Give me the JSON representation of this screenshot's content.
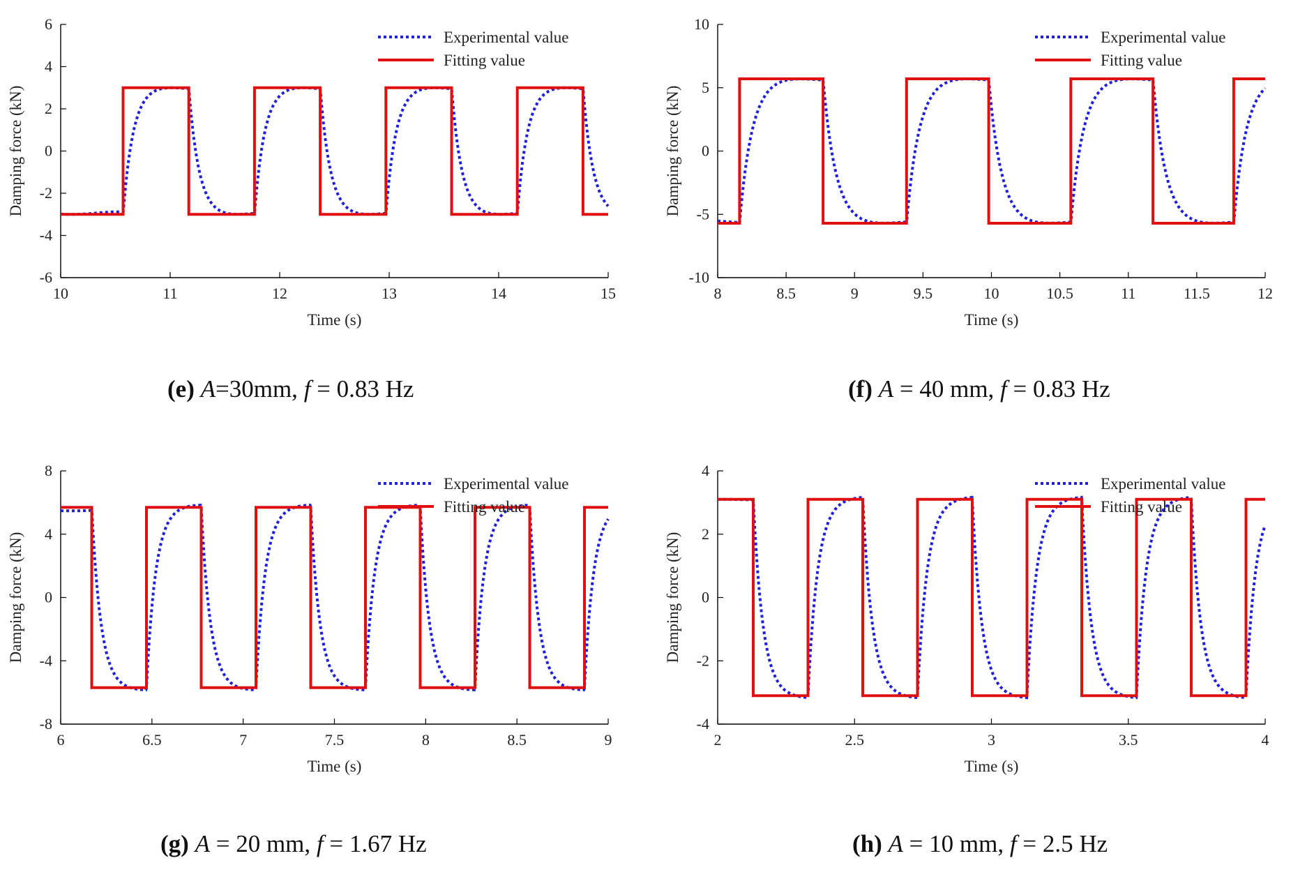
{
  "chart_data": [
    {
      "id": "e",
      "type": "line",
      "xlabel": "Time (s)",
      "ylabel": "Damping force (kN)",
      "xlim": [
        10,
        15
      ],
      "ylim": [
        -6,
        6
      ],
      "xticks": [
        10,
        11,
        12,
        13,
        14,
        15
      ],
      "yticks": [
        -6,
        -4,
        -2,
        0,
        2,
        4,
        6
      ],
      "legend_position": "top-right",
      "amplitude": 3.0,
      "switch_times": [
        10.57,
        11.17,
        11.77,
        12.37,
        12.97,
        13.57,
        14.17,
        14.77
      ],
      "initial_sign": -1,
      "lag": 0.09,
      "series": [
        {
          "name": "Experimental value",
          "style": "dotted",
          "color": "#1f1fe0"
        },
        {
          "name": "Fitting value",
          "style": "solid",
          "color": "#e01010"
        }
      ],
      "caption": {
        "letter": "(e)",
        "rest": [
          {
            "t": "A",
            "i": true
          },
          {
            "t": "=30mm, ",
            "i": false
          },
          {
            "t": "f",
            "i": true
          },
          {
            "t": " = 0.83 Hz",
            "i": false
          }
        ]
      }
    },
    {
      "id": "f",
      "type": "line",
      "xlabel": "Time (s)",
      "ylabel": "Damping force (kN)",
      "xlim": [
        8,
        12
      ],
      "ylim": [
        -10,
        10
      ],
      "xticks": [
        8,
        8.5,
        9,
        9.5,
        10,
        10.5,
        11,
        11.5,
        12
      ],
      "yticks": [
        -10,
        -5,
        0,
        5,
        10
      ],
      "legend_position": "top-right",
      "amplitude": 5.7,
      "switch_times": [
        8.16,
        8.77,
        9.38,
        9.98,
        10.58,
        11.18,
        11.77
      ],
      "initial_sign": -1,
      "lag": 0.09,
      "series": [
        {
          "name": "Experimental value",
          "style": "dotted",
          "color": "#1f1fe0"
        },
        {
          "name": "Fitting value",
          "style": "solid",
          "color": "#e01010"
        }
      ],
      "caption": {
        "letter": "(f)",
        "rest": [
          {
            "t": "A",
            "i": true
          },
          {
            "t": " = 40 mm, ",
            "i": false
          },
          {
            "t": "f",
            "i": true
          },
          {
            "t": " = 0.83 Hz",
            "i": false
          }
        ]
      }
    },
    {
      "id": "g",
      "type": "line",
      "xlabel": "Time (s)",
      "ylabel": "Damping force (kN)",
      "xlim": [
        6,
        9
      ],
      "ylim": [
        -8,
        8
      ],
      "xticks": [
        6,
        6.5,
        7,
        7.5,
        8,
        8.5,
        9
      ],
      "yticks": [
        -8,
        -4,
        0,
        4,
        8
      ],
      "legend_position": "top-right",
      "amplitude": 5.7,
      "switch_times": [
        6.17,
        6.47,
        6.77,
        7.07,
        7.37,
        7.67,
        7.97,
        8.27,
        8.57,
        8.87
      ],
      "initial_sign": 1,
      "lag": 0.05,
      "series": [
        {
          "name": "Experimental value",
          "style": "dotted",
          "color": "#1f1fe0"
        },
        {
          "name": "Fitting value",
          "style": "solid",
          "color": "#e01010"
        }
      ],
      "caption": {
        "letter": "(g)",
        "rest": [
          {
            "t": "A",
            "i": true
          },
          {
            "t": " = 20 mm, ",
            "i": false
          },
          {
            "t": "f",
            "i": true
          },
          {
            "t": " = 1.67 Hz",
            "i": false
          }
        ]
      }
    },
    {
      "id": "h",
      "type": "line",
      "xlabel": "Time (s)",
      "ylabel": "Damping force (kN)",
      "xlim": [
        2,
        4
      ],
      "ylim": [
        -4,
        4
      ],
      "xticks": [
        2,
        2.5,
        3,
        3.5,
        4
      ],
      "yticks": [
        -4,
        -2,
        0,
        2,
        4
      ],
      "legend_position": "top-right",
      "amplitude": 3.1,
      "switch_times": [
        2.13,
        2.33,
        2.53,
        2.73,
        2.93,
        3.13,
        3.33,
        3.53,
        3.73,
        3.93
      ],
      "initial_sign": 1,
      "lag": 0.035,
      "series": [
        {
          "name": "Experimental value",
          "style": "dotted",
          "color": "#1f1fe0"
        },
        {
          "name": "Fitting value",
          "style": "solid",
          "color": "#e01010"
        }
      ],
      "caption": {
        "letter": "(h)",
        "rest": [
          {
            "t": "A",
            "i": true
          },
          {
            "t": " = 10 mm, ",
            "i": false
          },
          {
            "t": "f",
            "i": true
          },
          {
            "t": " = 2.5 Hz",
            "i": false
          }
        ]
      }
    }
  ]
}
